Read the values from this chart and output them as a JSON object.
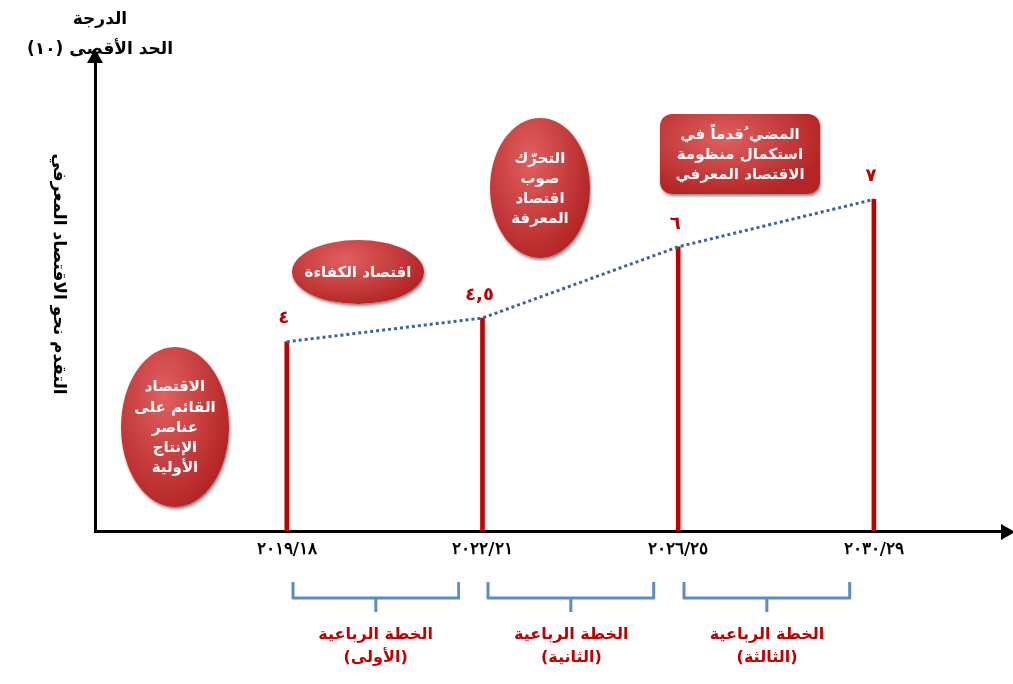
{
  "chart_data": {
    "type": "bar",
    "title": "الدرجة",
    "subtitle": "الحد الأقصى (١٠)",
    "ylabel": "التقدم نحو الاقتصاد المعرفي",
    "categories": [
      "٢٠١٩/١٨",
      "٢٠٢٢/٢١",
      "٢٠٢٦/٢٥",
      "٢٠٣٠/٢٩"
    ],
    "series": [
      {
        "color": "#c00000",
        "values": [
          4,
          4.5,
          6,
          7
        ],
        "value_labels": [
          "٤",
          "٤,٥",
          "٦",
          "٧"
        ]
      },
      {
        "type": "line",
        "color": "#3d6496",
        "values": [
          4,
          4.5,
          6,
          7
        ],
        "line_style": "dotted",
        "marker": "none"
      }
    ],
    "ylim": [
      0,
      10
    ],
    "tick_labels": "x",
    "legend": false,
    "grid": false,
    "annotations": [
      "الاقتصاد القائم على عناصر الإنتاج الأولية",
      "اقتصاد الكفاءة",
      "التحرّك صوب اقتصاد المعرفة",
      "المضي ُقدماً في استكمال منظومة الاقتصاد المعرفي",
      "الخطة الرباعية (الأولى)",
      "الخطة الرباعية (الثانية)",
      "الخطة الرباعية (الثالثة)"
    ]
  }
}
